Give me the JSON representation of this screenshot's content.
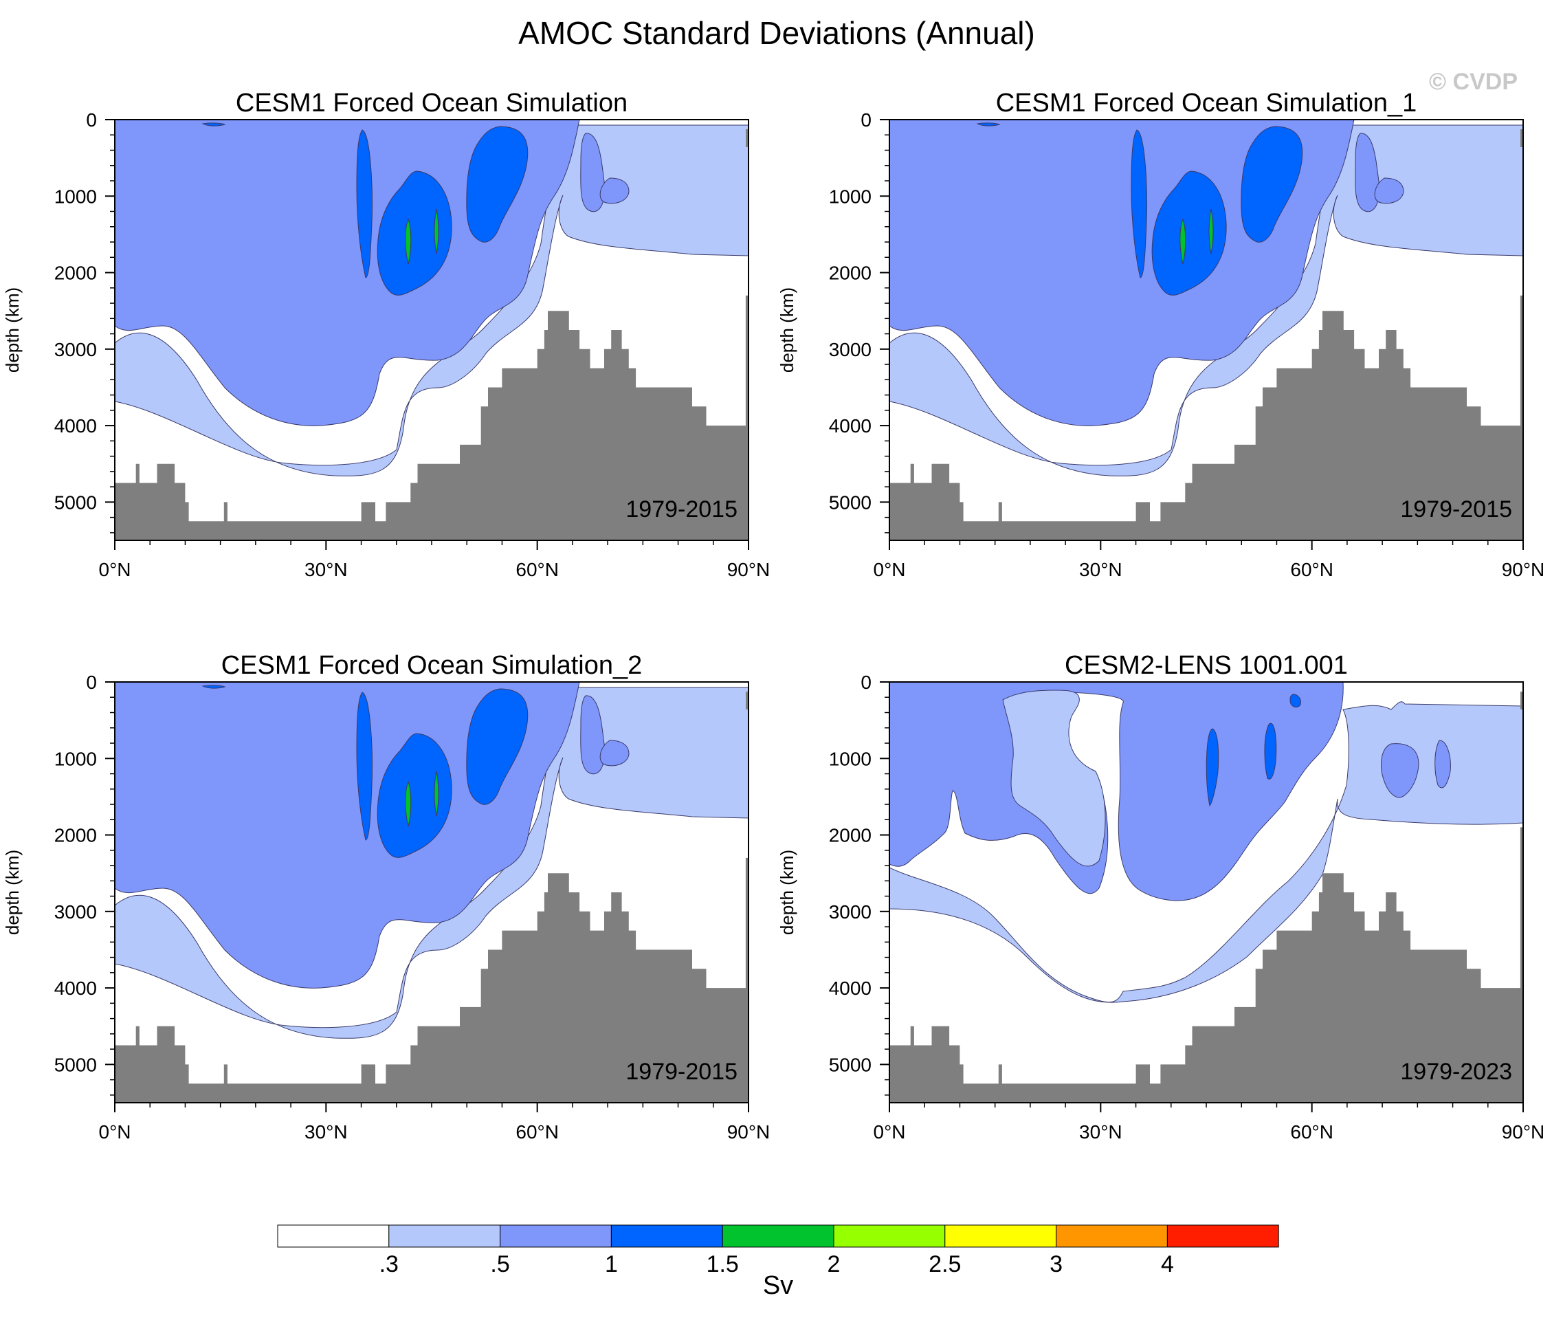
{
  "figure_title": "AMOC Standard Deviations (Annual)",
  "watermark": "© CVDP",
  "chart_data": [
    {
      "type": "contour",
      "title": "CESM1 Forced Ocean Simulation",
      "years": "1979-2015",
      "xlabel": "",
      "ylabel": "depth (km)",
      "xlim": [
        0,
        90
      ],
      "ylim": [
        0,
        5500
      ],
      "x_ticks": [
        0,
        30,
        60,
        90
      ],
      "x_tick_labels": [
        "0°N",
        "30°N",
        "60°N",
        "90°N"
      ],
      "y_ticks": [
        0,
        1000,
        2000,
        3000,
        4000,
        5000
      ],
      "y_tick_labels": [
        "0",
        "1000",
        "2000",
        "3000",
        "4000",
        "5000"
      ],
      "bathymetry": [
        [
          0,
          4750
        ],
        [
          3,
          4500
        ],
        [
          3.5,
          4750
        ],
        [
          6,
          4500
        ],
        [
          8.5,
          4750
        ],
        [
          10,
          5000
        ],
        [
          10.5,
          5250
        ],
        [
          15.5,
          5000
        ],
        [
          16,
          5250
        ],
        [
          35,
          5000
        ],
        [
          37,
          5250
        ],
        [
          38.5,
          5000
        ],
        [
          42,
          4750
        ],
        [
          43,
          4500
        ],
        [
          49,
          4250
        ],
        [
          52,
          3750
        ],
        [
          53,
          3500
        ],
        [
          55,
          3250
        ],
        [
          60,
          3000
        ],
        [
          61,
          2750
        ],
        [
          61.5,
          2500
        ],
        [
          64.5,
          2750
        ],
        [
          66,
          3000
        ],
        [
          67.5,
          3250
        ],
        [
          69.5,
          3000
        ],
        [
          70.5,
          2750
        ],
        [
          72,
          3000
        ],
        [
          73,
          3250
        ],
        [
          74,
          3500
        ],
        [
          82,
          3750
        ],
        [
          84,
          4000
        ],
        [
          89.6,
          2300
        ],
        [
          90,
          2300
        ]
      ],
      "shelf_stub": true
    },
    {
      "type": "contour",
      "title": "CESM1 Forced Ocean Simulation_1",
      "years": "1979-2015",
      "xlabel": "",
      "ylabel": "depth (km)",
      "xlim": [
        0,
        90
      ],
      "ylim": [
        0,
        5500
      ],
      "x_ticks": [
        0,
        30,
        60,
        90
      ],
      "x_tick_labels": [
        "0°N",
        "30°N",
        "60°N",
        "90°N"
      ],
      "y_ticks": [
        0,
        1000,
        2000,
        3000,
        4000,
        5000
      ],
      "y_tick_labels": [
        "0",
        "1000",
        "2000",
        "3000",
        "4000",
        "5000"
      ],
      "bathymetry": [
        [
          0,
          4750
        ],
        [
          3,
          4500
        ],
        [
          3.5,
          4750
        ],
        [
          6,
          4500
        ],
        [
          8.5,
          4750
        ],
        [
          10,
          5000
        ],
        [
          10.5,
          5250
        ],
        [
          15.5,
          5000
        ],
        [
          16,
          5250
        ],
        [
          35,
          5000
        ],
        [
          37,
          5250
        ],
        [
          38.5,
          5000
        ],
        [
          42,
          4750
        ],
        [
          43,
          4500
        ],
        [
          49,
          4250
        ],
        [
          52,
          3750
        ],
        [
          53,
          3500
        ],
        [
          55,
          3250
        ],
        [
          60,
          3000
        ],
        [
          61,
          2750
        ],
        [
          61.5,
          2500
        ],
        [
          64.5,
          2750
        ],
        [
          66,
          3000
        ],
        [
          67.5,
          3250
        ],
        [
          69.5,
          3000
        ],
        [
          70.5,
          2750
        ],
        [
          72,
          3000
        ],
        [
          73,
          3250
        ],
        [
          74,
          3500
        ],
        [
          82,
          3750
        ],
        [
          84,
          4000
        ],
        [
          89.6,
          2300
        ],
        [
          90,
          2300
        ]
      ],
      "shelf_stub": true
    },
    {
      "type": "contour",
      "title": "CESM1 Forced Ocean Simulation_2",
      "years": "1979-2015",
      "xlabel": "",
      "ylabel": "depth (km)",
      "xlim": [
        0,
        90
      ],
      "ylim": [
        0,
        5500
      ],
      "x_ticks": [
        0,
        30,
        60,
        90
      ],
      "x_tick_labels": [
        "0°N",
        "30°N",
        "60°N",
        "90°N"
      ],
      "y_ticks": [
        0,
        1000,
        2000,
        3000,
        4000,
        5000
      ],
      "y_tick_labels": [
        "0",
        "1000",
        "2000",
        "3000",
        "4000",
        "5000"
      ],
      "bathymetry": [
        [
          0,
          4750
        ],
        [
          3,
          4500
        ],
        [
          3.5,
          4750
        ],
        [
          6,
          4500
        ],
        [
          8.5,
          4750
        ],
        [
          10,
          5000
        ],
        [
          10.5,
          5250
        ],
        [
          15.5,
          5000
        ],
        [
          16,
          5250
        ],
        [
          35,
          5000
        ],
        [
          37,
          5250
        ],
        [
          38.5,
          5000
        ],
        [
          42,
          4750
        ],
        [
          43,
          4500
        ],
        [
          49,
          4250
        ],
        [
          52,
          3750
        ],
        [
          53,
          3500
        ],
        [
          55,
          3250
        ],
        [
          60,
          3000
        ],
        [
          61,
          2750
        ],
        [
          61.5,
          2500
        ],
        [
          64.5,
          2750
        ],
        [
          66,
          3000
        ],
        [
          67.5,
          3250
        ],
        [
          69.5,
          3000
        ],
        [
          70.5,
          2750
        ],
        [
          72,
          3000
        ],
        [
          73,
          3250
        ],
        [
          74,
          3500
        ],
        [
          82,
          3750
        ],
        [
          84,
          4000
        ],
        [
          89.6,
          2300
        ],
        [
          90,
          2300
        ]
      ],
      "shelf_stub": true
    },
    {
      "type": "contour",
      "title": "CESM2-LENS 1001.001",
      "years": "1979-2023",
      "xlabel": "",
      "ylabel": "depth (km)",
      "xlim": [
        0,
        90
      ],
      "ylim": [
        0,
        5500
      ],
      "x_ticks": [
        0,
        30,
        60,
        90
      ],
      "x_tick_labels": [
        "0°N",
        "30°N",
        "60°N",
        "90°N"
      ],
      "y_ticks": [
        0,
        1000,
        2000,
        3000,
        4000,
        5000
      ],
      "y_tick_labels": [
        "0",
        "1000",
        "2000",
        "3000",
        "4000",
        "5000"
      ],
      "bathymetry": [
        [
          0,
          4750
        ],
        [
          3,
          4500
        ],
        [
          3.5,
          4750
        ],
        [
          6,
          4500
        ],
        [
          8.5,
          4750
        ],
        [
          10,
          5000
        ],
        [
          10.5,
          5250
        ],
        [
          15.5,
          5000
        ],
        [
          16,
          5250
        ],
        [
          35,
          5000
        ],
        [
          37,
          5250
        ],
        [
          38.5,
          5000
        ],
        [
          42,
          4750
        ],
        [
          43,
          4500
        ],
        [
          49,
          4250
        ],
        [
          52,
          3750
        ],
        [
          53,
          3500
        ],
        [
          55,
          3250
        ],
        [
          60,
          3000
        ],
        [
          61,
          2750
        ],
        [
          61.5,
          2500
        ],
        [
          64.5,
          2750
        ],
        [
          66,
          3000
        ],
        [
          67.5,
          3250
        ],
        [
          69.5,
          3000
        ],
        [
          70.5,
          2750
        ],
        [
          72,
          3000
        ],
        [
          73,
          3250
        ],
        [
          74,
          3500
        ],
        [
          82,
          3750
        ],
        [
          84,
          4000
        ],
        [
          89.6,
          1900
        ],
        [
          90,
          1900
        ]
      ],
      "shelf_stub": true
    }
  ],
  "colorbar": {
    "label": "Sv",
    "labels": [
      ".3",
      ".5",
      "1",
      "1.5",
      "2",
      "2.5",
      "3",
      "4"
    ],
    "colors": [
      "#ffffff",
      "#b4c8fc",
      "#7f96fb",
      "#0064ff",
      "#00c32d",
      "#96ff00",
      "#ffff00",
      "#ff9600",
      "#ff1e00"
    ]
  },
  "colors": {
    "land": "#7f7f7f",
    "level_03": "#b4c8fc",
    "level_05": "#7f96fb",
    "level_1": "#0064ff",
    "level_15": "#00c32d"
  }
}
